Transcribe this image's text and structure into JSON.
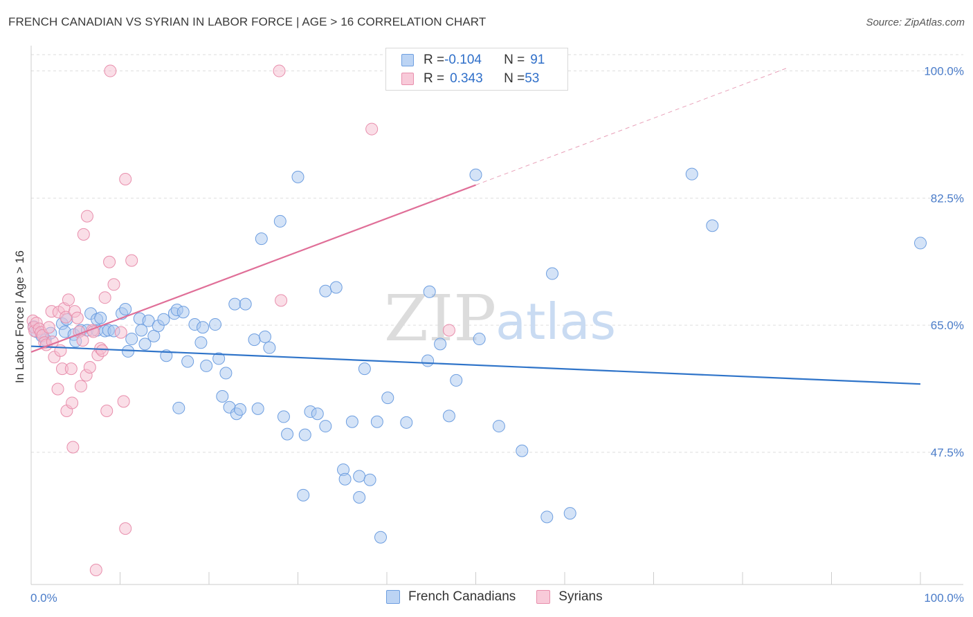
{
  "title": "FRENCH CANADIAN VS SYRIAN IN LABOR FORCE | AGE > 16 CORRELATION CHART",
  "source": "Source: ZipAtlas.com",
  "watermark": {
    "zip": "ZIP",
    "atlas": "atlas"
  },
  "legend": {
    "rows": [
      {
        "r_label": "R = ",
        "r_value": "-0.104",
        "n_label": "N = ",
        "n_value": "91"
      },
      {
        "r_label": "R = ",
        "r_value": "0.343",
        "n_label": "N = ",
        "n_value": "53"
      }
    ]
  },
  "bottom_legend": [
    "French Canadians",
    "Syrians"
  ],
  "chart_data": {
    "type": "scatter",
    "title": "FRENCH CANADIAN VS SYRIAN IN LABOR FORCE | AGE > 16 CORRELATION CHART",
    "xlabel": "",
    "ylabel": "In Labor Force | Age > 16",
    "xlim": [
      0,
      100
    ],
    "ylim": [
      29.3,
      103.1
    ],
    "y_ticks": [
      47.5,
      65.0,
      82.5,
      100.0
    ],
    "y_tick_labels": [
      "47.5%",
      "65.0%",
      "82.5%",
      "100.0%"
    ],
    "x_tick_labels": [
      "0.0%",
      "100.0%"
    ],
    "colors": {
      "french_fill": "#a9c8f0",
      "french_stroke": "#6d9ee0",
      "french_line": "#2f74c9",
      "syrian_fill": "#f6bdd0",
      "syrian_stroke": "#e88eac",
      "syrian_line": "#e06f98"
    },
    "series": [
      {
        "name": "French Canadians",
        "r": -0.104,
        "n": 91,
        "trend": {
          "x0": 0,
          "y0": 62.1,
          "x1": 100,
          "y1": 56.9
        },
        "points": [
          [
            0.3,
            64.8
          ],
          [
            0.6,
            64.1
          ],
          [
            1.2,
            63.5
          ],
          [
            1.6,
            63.0
          ],
          [
            2.2,
            63.9
          ],
          [
            3.5,
            65.2
          ],
          [
            3.8,
            64.1
          ],
          [
            4.0,
            65.8
          ],
          [
            4.8,
            63.7
          ],
          [
            5.0,
            62.8
          ],
          [
            5.6,
            64.3
          ],
          [
            6.3,
            64.3
          ],
          [
            6.7,
            66.6
          ],
          [
            7.4,
            64.3
          ],
          [
            7.4,
            65.8
          ],
          [
            7.8,
            66.0
          ],
          [
            8.3,
            64.2
          ],
          [
            8.7,
            64.3
          ],
          [
            9.3,
            64.2
          ],
          [
            10.2,
            66.6
          ],
          [
            10.6,
            67.2
          ],
          [
            10.9,
            61.4
          ],
          [
            11.3,
            63.1
          ],
          [
            12.2,
            65.9
          ],
          [
            12.4,
            64.3
          ],
          [
            12.8,
            62.4
          ],
          [
            13.2,
            65.6
          ],
          [
            13.8,
            63.5
          ],
          [
            14.3,
            64.9
          ],
          [
            14.9,
            65.8
          ],
          [
            15.2,
            60.8
          ],
          [
            16.1,
            66.6
          ],
          [
            16.4,
            67.1
          ],
          [
            16.6,
            53.6
          ],
          [
            17.1,
            66.8
          ],
          [
            17.6,
            60.0
          ],
          [
            18.4,
            65.1
          ],
          [
            19.1,
            62.6
          ],
          [
            19.3,
            64.7
          ],
          [
            19.7,
            59.4
          ],
          [
            20.7,
            65.1
          ],
          [
            21.1,
            60.4
          ],
          [
            21.5,
            55.2
          ],
          [
            21.9,
            58.4
          ],
          [
            22.3,
            53.7
          ],
          [
            22.9,
            67.9
          ],
          [
            23.1,
            52.8
          ],
          [
            23.5,
            53.4
          ],
          [
            24.1,
            67.9
          ],
          [
            25.1,
            63.0
          ],
          [
            25.5,
            53.5
          ],
          [
            25.9,
            76.9
          ],
          [
            26.3,
            63.4
          ],
          [
            26.8,
            61.9
          ],
          [
            28.0,
            79.3
          ],
          [
            28.4,
            52.4
          ],
          [
            28.8,
            50.0
          ],
          [
            30.0,
            85.4
          ],
          [
            30.6,
            41.6
          ],
          [
            30.8,
            49.9
          ],
          [
            31.4,
            53.1
          ],
          [
            32.2,
            52.8
          ],
          [
            33.1,
            51.1
          ],
          [
            33.1,
            69.7
          ],
          [
            34.3,
            70.2
          ],
          [
            35.1,
            45.1
          ],
          [
            35.3,
            43.8
          ],
          [
            36.1,
            51.7
          ],
          [
            36.9,
            44.2
          ],
          [
            36.9,
            41.3
          ],
          [
            37.5,
            59.0
          ],
          [
            38.1,
            43.7
          ],
          [
            38.9,
            51.7
          ],
          [
            39.3,
            35.8
          ],
          [
            40.1,
            55.0
          ],
          [
            42.2,
            51.6
          ],
          [
            44.6,
            60.1
          ],
          [
            44.8,
            69.6
          ],
          [
            46.0,
            62.4
          ],
          [
            47.0,
            52.5
          ],
          [
            47.8,
            57.4
          ],
          [
            50.0,
            85.7
          ],
          [
            50.4,
            63.1
          ],
          [
            52.6,
            51.1
          ],
          [
            55.2,
            47.7
          ],
          [
            58.0,
            38.6
          ],
          [
            58.6,
            72.1
          ],
          [
            60.6,
            39.1
          ],
          [
            74.3,
            85.8
          ],
          [
            76.6,
            78.7
          ],
          [
            100.0,
            76.3
          ]
        ]
      },
      {
        "name": "Syrians",
        "r": 0.343,
        "n": 53,
        "trend": {
          "x0": 0,
          "y0": 61.3,
          "x1": 50,
          "y1": 84.3
        },
        "trend_ext": {
          "x0": 50,
          "y0": 84.3,
          "x1": 85,
          "y1": 100.4
        },
        "points": [
          [
            0.2,
            65.6
          ],
          [
            0.3,
            64.7
          ],
          [
            0.4,
            64.2
          ],
          [
            0.6,
            65.3
          ],
          [
            0.9,
            64.5
          ],
          [
            1.1,
            64.0
          ],
          [
            1.3,
            63.6
          ],
          [
            1.5,
            62.6
          ],
          [
            1.7,
            62.3
          ],
          [
            2.0,
            64.7
          ],
          [
            2.3,
            66.9
          ],
          [
            2.4,
            62.7
          ],
          [
            2.6,
            60.6
          ],
          [
            3.0,
            56.2
          ],
          [
            3.1,
            66.8
          ],
          [
            3.3,
            61.5
          ],
          [
            3.5,
            59.0
          ],
          [
            3.7,
            67.3
          ],
          [
            3.9,
            66.1
          ],
          [
            4.0,
            53.2
          ],
          [
            4.2,
            68.5
          ],
          [
            4.5,
            59.0
          ],
          [
            4.6,
            54.3
          ],
          [
            4.7,
            48.2
          ],
          [
            4.9,
            66.9
          ],
          [
            5.2,
            66.0
          ],
          [
            5.4,
            64.1
          ],
          [
            5.6,
            56.6
          ],
          [
            5.8,
            62.9
          ],
          [
            5.9,
            77.5
          ],
          [
            6.2,
            58.1
          ],
          [
            6.3,
            80.0
          ],
          [
            6.6,
            59.2
          ],
          [
            6.9,
            64.3
          ],
          [
            7.0,
            64.1
          ],
          [
            7.3,
            31.3
          ],
          [
            7.5,
            60.9
          ],
          [
            7.8,
            61.8
          ],
          [
            8.0,
            61.5
          ],
          [
            8.3,
            68.8
          ],
          [
            8.5,
            53.2
          ],
          [
            8.9,
            100.0
          ],
          [
            8.8,
            73.7
          ],
          [
            9.3,
            70.6
          ],
          [
            10.1,
            64.0
          ],
          [
            10.4,
            54.5
          ],
          [
            10.6,
            85.1
          ],
          [
            10.6,
            37.0
          ],
          [
            11.3,
            73.9
          ],
          [
            27.9,
            100.0
          ],
          [
            28.1,
            68.4
          ],
          [
            38.3,
            92.0
          ],
          [
            47.0,
            64.3
          ]
        ]
      }
    ]
  }
}
